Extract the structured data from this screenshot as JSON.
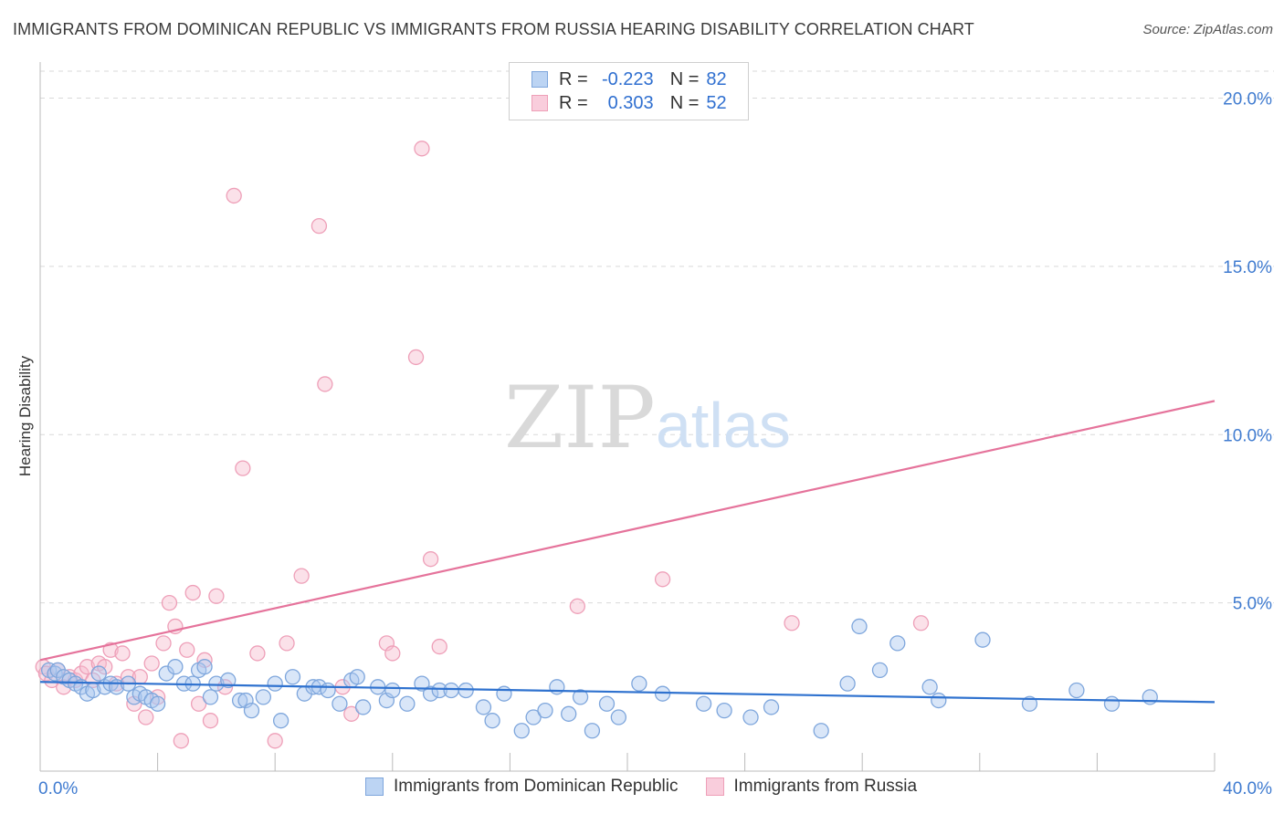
{
  "title": "IMMIGRANTS FROM DOMINICAN REPUBLIC VS IMMIGRANTS FROM RUSSIA HEARING DISABILITY CORRELATION CHART",
  "source": "Source: ZipAtlas.com",
  "watermark": {
    "zip": "ZIP",
    "atlas": "atlas"
  },
  "legend": {
    "series1": {
      "r_label": "R =",
      "r_value": "-0.223",
      "n_label": "N =",
      "n_value": "82"
    },
    "series2": {
      "r_label": "R =",
      "r_value": "0.303",
      "n_label": "N =",
      "n_value": "52"
    }
  },
  "colors": {
    "blue_fill": "#aac8f0",
    "blue_stroke": "#7ea6dc",
    "blue_line": "#2f72cf",
    "pink_fill": "#f6bccf",
    "pink_stroke": "#ee9fb8",
    "pink_line": "#e5739b",
    "grid": "#d9d9d9",
    "axis_label": "#3f7bd0"
  },
  "chart_data": {
    "type": "scatter",
    "title": "IMMIGRANTS FROM DOMINICAN REPUBLIC VS IMMIGRANTS FROM RUSSIA HEARING DISABILITY CORRELATION CHART",
    "xlabel": "",
    "ylabel": "Hearing Disability",
    "xlim": [
      0,
      40
    ],
    "ylim": [
      0,
      20.8
    ],
    "x_tick_labels": [
      "0.0%",
      "40.0%"
    ],
    "y_ticks": [
      5,
      10,
      15,
      20
    ],
    "y_tick_labels": [
      "5.0%",
      "10.0%",
      "15.0%",
      "20.0%"
    ],
    "grid": true,
    "series": [
      {
        "name": "Immigrants from Dominican Republic",
        "color": "#aac8f0",
        "trend": {
          "x": [
            0,
            40
          ],
          "y": [
            2.65,
            2.05
          ]
        },
        "points": [
          [
            0.3,
            3.0
          ],
          [
            0.5,
            2.9
          ],
          [
            0.6,
            3.0
          ],
          [
            0.8,
            2.8
          ],
          [
            1.0,
            2.7
          ],
          [
            1.2,
            2.6
          ],
          [
            1.4,
            2.5
          ],
          [
            1.6,
            2.3
          ],
          [
            1.8,
            2.4
          ],
          [
            2.0,
            2.9
          ],
          [
            2.2,
            2.5
          ],
          [
            2.4,
            2.6
          ],
          [
            2.6,
            2.5
          ],
          [
            3.0,
            2.6
          ],
          [
            3.2,
            2.2
          ],
          [
            3.4,
            2.3
          ],
          [
            3.6,
            2.2
          ],
          [
            3.8,
            2.1
          ],
          [
            4.0,
            2.0
          ],
          [
            4.3,
            2.9
          ],
          [
            4.6,
            3.1
          ],
          [
            4.9,
            2.6
          ],
          [
            5.2,
            2.6
          ],
          [
            5.4,
            3.0
          ],
          [
            5.6,
            3.1
          ],
          [
            5.8,
            2.2
          ],
          [
            6.0,
            2.6
          ],
          [
            6.4,
            2.7
          ],
          [
            6.8,
            2.1
          ],
          [
            7.0,
            2.1
          ],
          [
            7.2,
            1.8
          ],
          [
            7.6,
            2.2
          ],
          [
            8.0,
            2.6
          ],
          [
            8.2,
            1.5
          ],
          [
            8.6,
            2.8
          ],
          [
            9.0,
            2.3
          ],
          [
            9.3,
            2.5
          ],
          [
            9.5,
            2.5
          ],
          [
            9.8,
            2.4
          ],
          [
            10.2,
            2.0
          ],
          [
            10.6,
            2.7
          ],
          [
            10.8,
            2.8
          ],
          [
            11.0,
            1.9
          ],
          [
            11.5,
            2.5
          ],
          [
            11.8,
            2.1
          ],
          [
            12.0,
            2.4
          ],
          [
            12.5,
            2.0
          ],
          [
            13.0,
            2.6
          ],
          [
            13.3,
            2.3
          ],
          [
            13.6,
            2.4
          ],
          [
            14.0,
            2.4
          ],
          [
            14.5,
            2.4
          ],
          [
            15.1,
            1.9
          ],
          [
            15.4,
            1.5
          ],
          [
            15.8,
            2.3
          ],
          [
            16.4,
            1.2
          ],
          [
            16.8,
            1.6
          ],
          [
            17.2,
            1.8
          ],
          [
            17.6,
            2.5
          ],
          [
            18.0,
            1.7
          ],
          [
            18.4,
            2.2
          ],
          [
            18.8,
            1.2
          ],
          [
            19.3,
            2.0
          ],
          [
            19.7,
            1.6
          ],
          [
            20.4,
            2.6
          ],
          [
            21.2,
            2.3
          ],
          [
            22.6,
            2.0
          ],
          [
            23.3,
            1.8
          ],
          [
            24.2,
            1.6
          ],
          [
            24.9,
            1.9
          ],
          [
            26.6,
            1.2
          ],
          [
            27.5,
            2.6
          ],
          [
            27.9,
            4.3
          ],
          [
            28.6,
            3.0
          ],
          [
            29.2,
            3.8
          ],
          [
            30.3,
            2.5
          ],
          [
            30.6,
            2.1
          ],
          [
            32.1,
            3.9
          ],
          [
            33.7,
            2.0
          ],
          [
            35.3,
            2.4
          ],
          [
            36.5,
            2.0
          ],
          [
            37.8,
            2.2
          ]
        ]
      },
      {
        "name": "Immigrants from Russia",
        "color": "#f6bccf",
        "trend": {
          "x": [
            0,
            40
          ],
          "y": [
            3.3,
            11.0
          ]
        },
        "points": [
          [
            0.1,
            3.1
          ],
          [
            0.2,
            2.9
          ],
          [
            0.4,
            2.7
          ],
          [
            0.6,
            3.0
          ],
          [
            0.8,
            2.5
          ],
          [
            1.0,
            2.8
          ],
          [
            1.2,
            2.7
          ],
          [
            1.4,
            2.9
          ],
          [
            1.6,
            3.1
          ],
          [
            1.8,
            2.7
          ],
          [
            2.0,
            3.2
          ],
          [
            2.2,
            3.1
          ],
          [
            2.4,
            3.6
          ],
          [
            2.6,
            2.6
          ],
          [
            2.8,
            3.5
          ],
          [
            3.0,
            2.8
          ],
          [
            3.2,
            2.0
          ],
          [
            3.4,
            2.8
          ],
          [
            3.6,
            1.6
          ],
          [
            3.8,
            3.2
          ],
          [
            4.0,
            2.2
          ],
          [
            4.2,
            3.8
          ],
          [
            4.4,
            5.0
          ],
          [
            4.6,
            4.3
          ],
          [
            4.8,
            0.9
          ],
          [
            5.0,
            3.6
          ],
          [
            5.2,
            5.3
          ],
          [
            5.4,
            2.0
          ],
          [
            5.6,
            3.3
          ],
          [
            5.8,
            1.5
          ],
          [
            6.0,
            5.2
          ],
          [
            6.3,
            2.5
          ],
          [
            6.6,
            17.1
          ],
          [
            6.9,
            9.0
          ],
          [
            7.4,
            3.5
          ],
          [
            8.0,
            0.9
          ],
          [
            8.4,
            3.8
          ],
          [
            8.9,
            5.8
          ],
          [
            9.5,
            16.2
          ],
          [
            9.7,
            11.5
          ],
          [
            10.3,
            2.5
          ],
          [
            10.6,
            1.7
          ],
          [
            11.8,
            3.8
          ],
          [
            12.0,
            3.5
          ],
          [
            12.8,
            12.3
          ],
          [
            13.0,
            18.5
          ],
          [
            13.3,
            6.3
          ],
          [
            13.6,
            3.7
          ],
          [
            18.3,
            4.9
          ],
          [
            21.2,
            5.7
          ],
          [
            25.6,
            4.4
          ],
          [
            30.0,
            4.4
          ]
        ]
      }
    ]
  },
  "bottom_legend": [
    "Immigrants from Dominican Republic",
    "Immigrants from Russia"
  ]
}
